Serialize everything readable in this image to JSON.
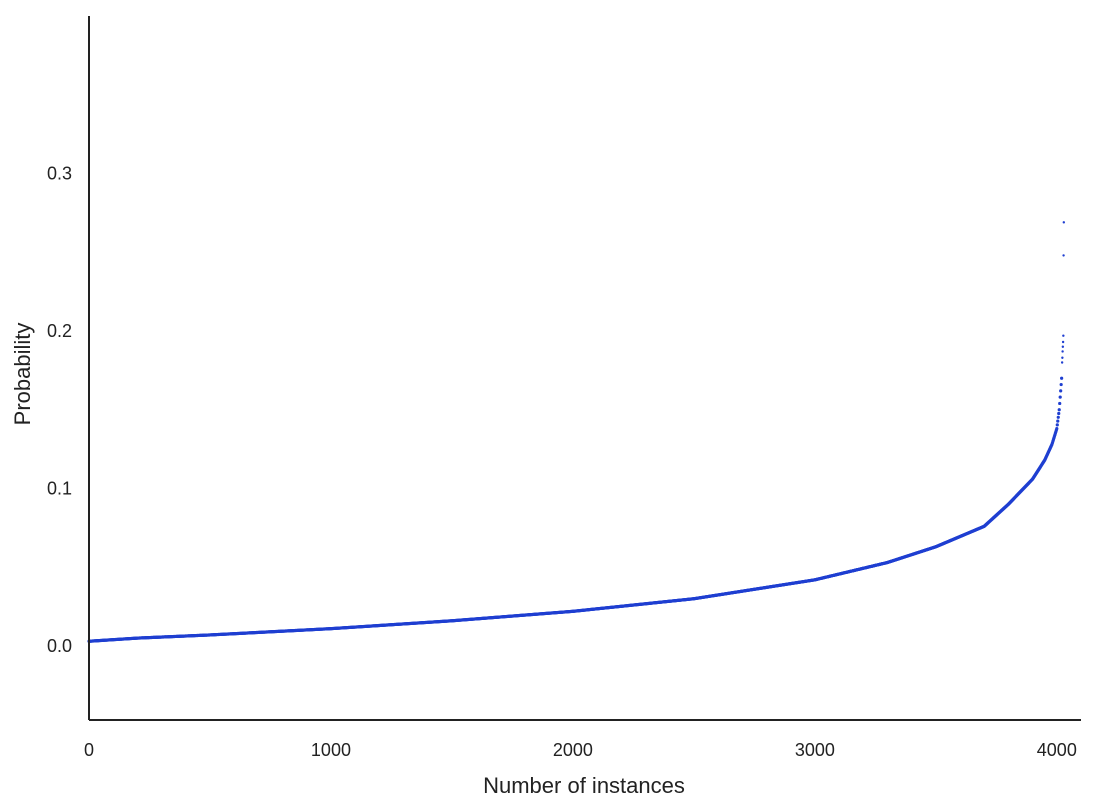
{
  "chart_data": {
    "type": "scatter",
    "title": "",
    "xlabel": "Number of instances",
    "ylabel": "Probability",
    "xlim": [
      0,
      4100
    ],
    "ylim": [
      -0.047,
      0.4
    ],
    "x_ticks": [
      {
        "value": 0,
        "label": "0"
      },
      {
        "value": 1000,
        "label": "1000"
      },
      {
        "value": 2000,
        "label": "2000"
      },
      {
        "value": 3000,
        "label": "3000"
      },
      {
        "value": 4000,
        "label": "4000"
      }
    ],
    "y_ticks": [
      {
        "value": 0.0,
        "label": "0.0"
      },
      {
        "value": 0.1,
        "label": "0.1"
      },
      {
        "value": 0.2,
        "label": "0.2"
      },
      {
        "value": 0.3,
        "label": "0.3"
      }
    ],
    "grid": false,
    "series": [
      {
        "color": "#1f3fd1",
        "n_points": 4030,
        "curve": [
          [
            0,
            0.003
          ],
          [
            200,
            0.005
          ],
          [
            500,
            0.007
          ],
          [
            1000,
            0.011
          ],
          [
            1500,
            0.016
          ],
          [
            2000,
            0.022
          ],
          [
            2500,
            0.03
          ],
          [
            3000,
            0.042
          ],
          [
            3300,
            0.053
          ],
          [
            3500,
            0.063
          ],
          [
            3700,
            0.076
          ],
          [
            3800,
            0.09
          ],
          [
            3900,
            0.106
          ],
          [
            3950,
            0.118
          ],
          [
            3980,
            0.128
          ],
          [
            4000,
            0.138
          ],
          [
            4010,
            0.15
          ],
          [
            4015,
            0.16
          ],
          [
            4020,
            0.17
          ]
        ],
        "outliers": [
          [
            4022,
            0.18
          ],
          [
            4023,
            0.183
          ],
          [
            4024,
            0.187
          ],
          [
            4025,
            0.19
          ],
          [
            4026,
            0.193
          ],
          [
            4027,
            0.197
          ],
          [
            4028,
            0.248
          ],
          [
            4029,
            0.269
          ]
        ]
      }
    ]
  }
}
